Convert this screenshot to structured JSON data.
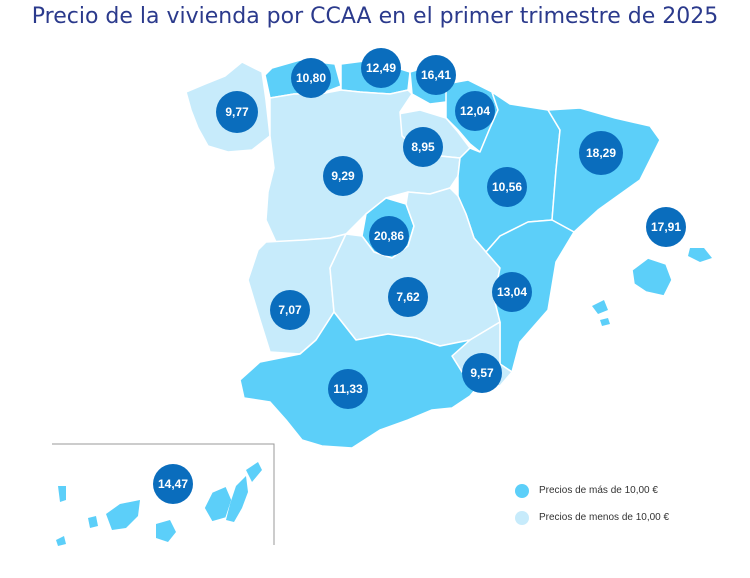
{
  "title": "Precio de la vivienda por CCAA en el primer trimestre de 2025",
  "colors": {
    "high": "#5ccff9",
    "low": "#c7ebfb",
    "bubble": "#0a6dbd",
    "border": "#ffffff",
    "inset_frame": "#9a9a9a"
  },
  "legend": [
    {
      "label": "Precios de más de 10,00 €",
      "color": "#5ccff9"
    },
    {
      "label": "Precios de menos de 10,00 €",
      "color": "#c7ebfb"
    }
  ],
  "regions": [
    {
      "name": "Galicia",
      "price": "9,77",
      "category": "low"
    },
    {
      "name": "Asturias",
      "price": "10,80",
      "category": "high"
    },
    {
      "name": "Cantabria",
      "price": "12,49",
      "category": "high"
    },
    {
      "name": "País Vasco",
      "price": "16,41",
      "category": "high"
    },
    {
      "name": "Navarra",
      "price": "12,04",
      "category": "high"
    },
    {
      "name": "La Rioja",
      "price": "8,95",
      "category": "low"
    },
    {
      "name": "Castilla y León",
      "price": "9,29",
      "category": "low"
    },
    {
      "name": "Aragón",
      "price": "10,56",
      "category": "high"
    },
    {
      "name": "Cataluña",
      "price": "18,29",
      "category": "high"
    },
    {
      "name": "Baleares",
      "price": "17,91",
      "category": "high"
    },
    {
      "name": "Madrid",
      "price": "20,86",
      "category": "high"
    },
    {
      "name": "Extremadura",
      "price": "7,07",
      "category": "low"
    },
    {
      "name": "Castilla-La Mancha",
      "price": "7,62",
      "category": "low"
    },
    {
      "name": "Comunidad Valenciana",
      "price": "13,04",
      "category": "high"
    },
    {
      "name": "Murcia",
      "price": "9,57",
      "category": "low"
    },
    {
      "name": "Andalucía",
      "price": "11,33",
      "category": "high"
    },
    {
      "name": "Canarias",
      "price": "14,47",
      "category": "high"
    }
  ]
}
